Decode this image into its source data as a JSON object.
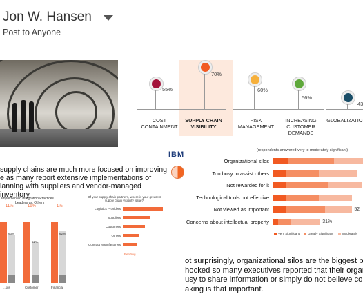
{
  "post": {
    "author": "Jon W. Hansen",
    "audience": "Post to Anyone"
  },
  "metrics": [
    {
      "label_lines": [
        "COST",
        "CONTAINMENT"
      ],
      "value": "55%",
      "color": "#a3123a"
    },
    {
      "label_lines": [
        "SUPPLY CHAIN",
        "VISIBILITY"
      ],
      "value": "70%",
      "color": "#f15a22"
    },
    {
      "label_lines": [
        "RISK",
        "MANAGEMENT"
      ],
      "value": "60%",
      "color": "#f6b03c"
    },
    {
      "label_lines": [
        "INCREASING",
        "CUSTOMER",
        "DEMANDS"
      ],
      "value": "56%",
      "color": "#5fa83b"
    },
    {
      "label_lines": [
        "GLOBALIZATION"
      ],
      "value": "43",
      "color": "#1a4e68"
    }
  ],
  "infographic": {
    "brand": "IBM",
    "headline_lines": [
      "supply chains are much more focused on improving",
      "e as many report extensive implementations of",
      "lanning with suppliers and vendor-managed inventory"
    ],
    "left_chart_title": "Implemented Integration Practices",
    "left_chart_subtitle": "Leaders vs. Others",
    "left_pcts": [
      "11%",
      "19%",
      "1%"
    ],
    "left_chart_labels": [
      "...sus",
      "Customer",
      "Financial"
    ],
    "right_chart_question": "Of your supply chain partners, where is your greatest supply chain visibility issue?",
    "right_chart_cats": [
      "Logistics Providers",
      "Suppliers",
      "Customers",
      "Others",
      "Contract Manufacturers"
    ],
    "right_chart_legend": "Pending",
    "left_bar_vals": [
      "63%",
      "52%",
      "62%"
    ]
  },
  "chart_data": {
    "type": "bar",
    "title": "(respondents answered very to moderately significant)",
    "categories": [
      "Organizational silos",
      "Too busy to assist others",
      "Not rewarded for it",
      "Technological tools not effective",
      "Not viewed as important",
      "Concerns about intellectual property"
    ],
    "series": [
      {
        "name": "Very Significant",
        "values": [
          10,
          8,
          8,
          8,
          8,
          3
        ]
      },
      {
        "name": "Greatly Significant",
        "values": [
          30,
          22,
          28,
          22,
          26,
          9
        ]
      },
      {
        "name": "Moderately",
        "values": [
          20,
          25,
          22,
          22,
          18,
          19
        ]
      }
    ],
    "value_labels": [
      "",
      "",
      "",
      "",
      "52",
      "31%"
    ],
    "legend": [
      "Very Significant",
      "Greatly Significant",
      "Moderately"
    ]
  },
  "body_text_lines": [
    "ot surprisingly, organizational silos are the biggest bar",
    "hocked so many executives reported that their organiz",
    "usy to share information or simply do not believe colla",
    "aking is that important."
  ]
}
